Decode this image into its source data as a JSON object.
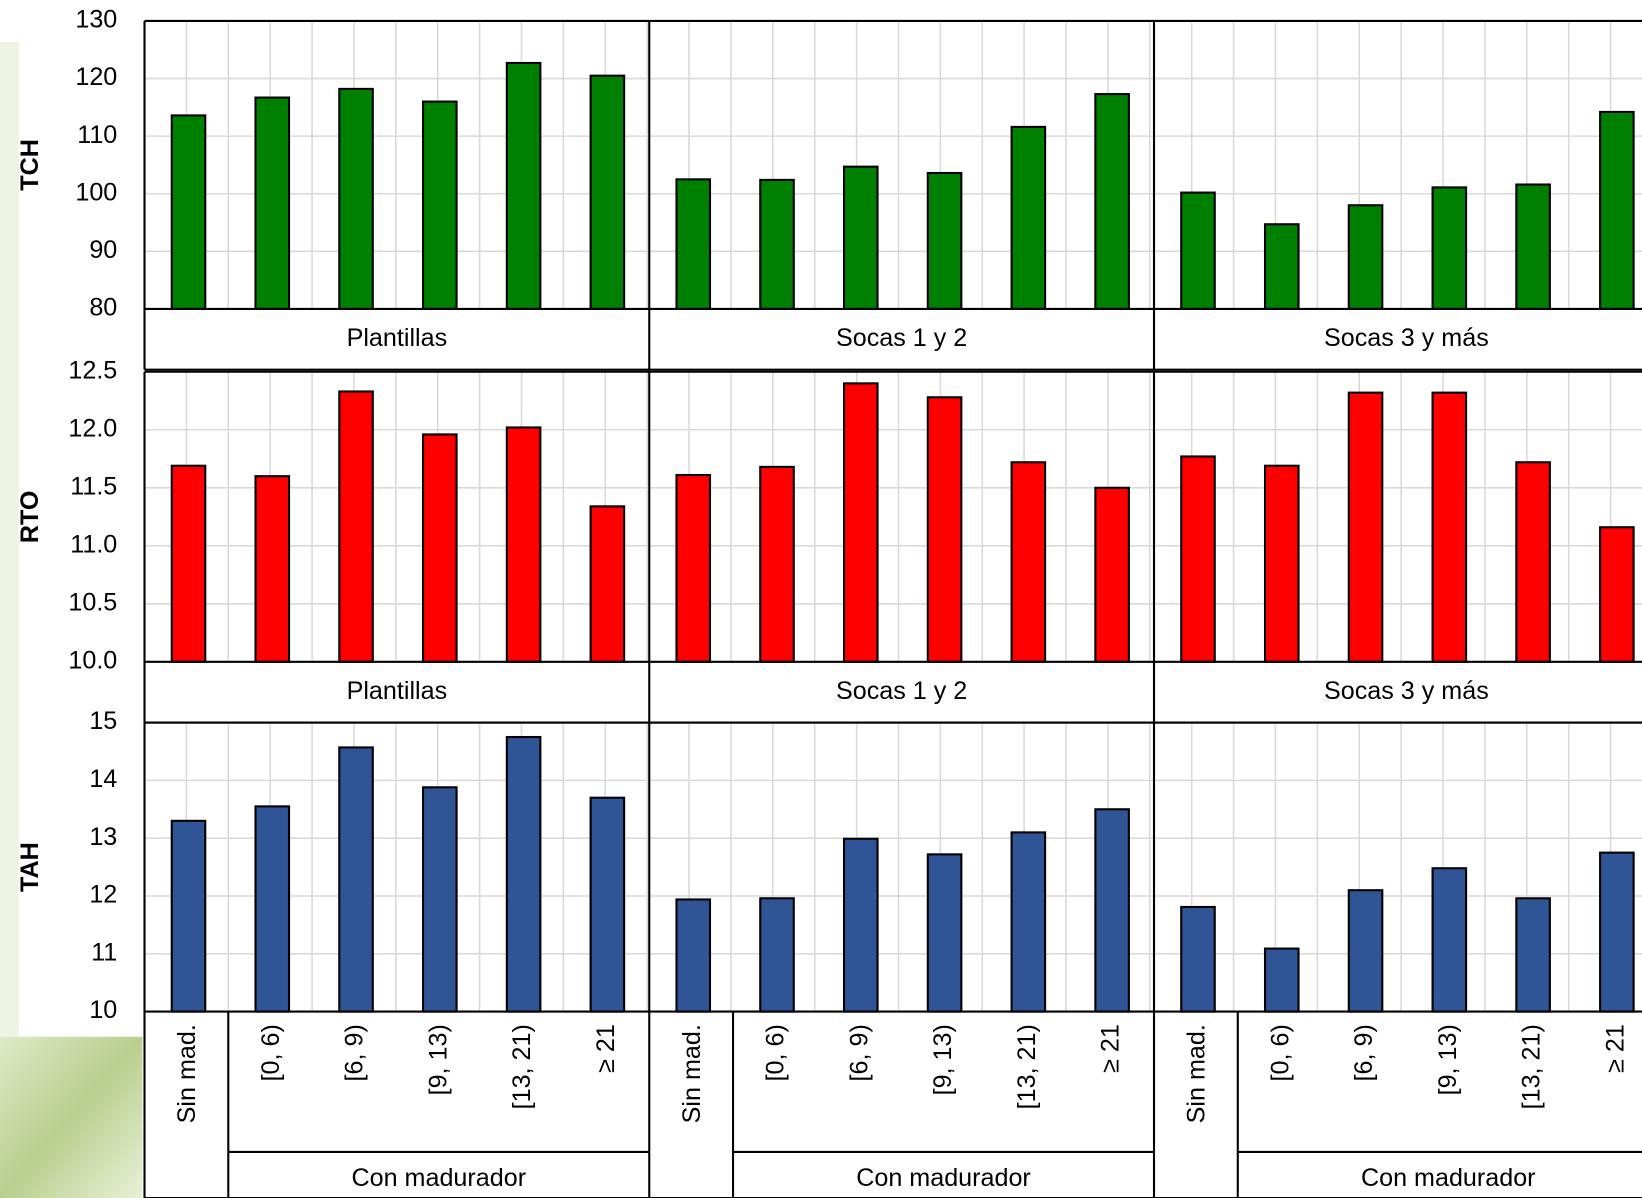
{
  "chart_data": [
    {
      "type": "bar",
      "ylabel": "TCH",
      "color": "#008000",
      "grid": true,
      "ylim": [
        80,
        130
      ],
      "yticks": [
        80,
        90,
        100,
        110,
        120,
        130
      ],
      "groups": [
        "Plantillas",
        "Socas 1 y 2",
        "Socas 3 y más"
      ],
      "values": [
        [
          113.6,
          116.7,
          118.2,
          116,
          122.7,
          120.5
        ],
        [
          102.5,
          102.4,
          104.7,
          103.6,
          111.6,
          117.3
        ],
        [
          100.2,
          94.7,
          98,
          101.1,
          101.6,
          114.2
        ]
      ]
    },
    {
      "type": "bar",
      "ylabel": "RTO",
      "color": "#ff0000",
      "grid": true,
      "ylim": [
        10,
        12.5
      ],
      "yticks": [
        {
          "value": 10,
          "label": "10.0"
        },
        10.5,
        {
          "value": 11,
          "label": "11.0"
        },
        11.5,
        {
          "value": 12,
          "label": "12.0"
        },
        12.5
      ],
      "groups": [
        "Plantillas",
        "Socas 1 y 2",
        "Socas 3 y más"
      ],
      "values": [
        [
          11.69,
          11.6,
          12.33,
          11.96,
          12.02,
          11.34
        ],
        [
          11.61,
          11.68,
          12.4,
          12.28,
          11.72,
          11.5
        ],
        [
          11.77,
          11.69,
          12.32,
          12.32,
          11.72,
          11.16
        ]
      ]
    },
    {
      "type": "bar",
      "ylabel": "TAH",
      "color": "#2f5597",
      "grid": true,
      "ylim": [
        10,
        15
      ],
      "yticks": [
        10,
        11,
        12,
        13,
        14,
        15
      ],
      "categories": [
        "Sin mad.",
        "[0, 6)",
        "[6, 9)",
        "[9, 13)",
        "[13, 21)",
        "≥ 21"
      ],
      "category_group": "Con madurador",
      "values": [
        [
          13.3,
          13.55,
          14.57,
          13.88,
          14.75,
          13.7
        ],
        [
          11.94,
          11.96,
          12.99,
          12.72,
          13.1,
          13.5
        ],
        [
          11.81,
          11.09,
          12.1,
          12.48,
          11.96,
          12.75
        ]
      ]
    }
  ]
}
